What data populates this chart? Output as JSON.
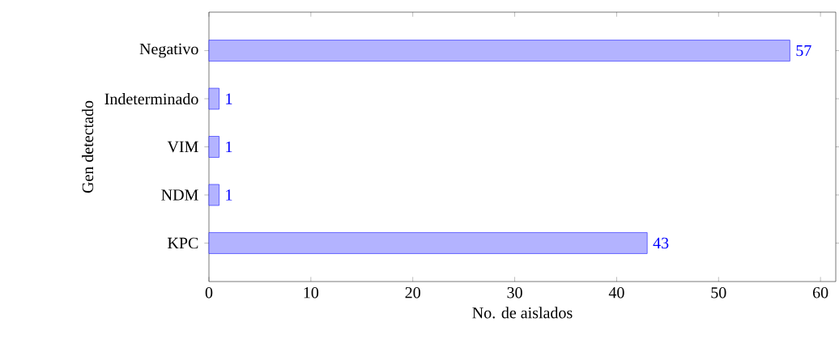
{
  "chart_data": {
    "type": "bar",
    "orientation": "horizontal",
    "xlabel": "No. de aislados",
    "ylabel": "Gen detectado",
    "categories": [
      "Negativo",
      "Indeterminado",
      "VIM",
      "NDM",
      "KPC"
    ],
    "values": [
      57,
      1,
      1,
      1,
      43
    ],
    "color": "#b3b3ff",
    "data_labels": true,
    "xlim": [
      0,
      61.5
    ],
    "xticks": [
      0,
      10,
      20,
      30,
      40,
      50,
      60
    ],
    "grid": false
  }
}
